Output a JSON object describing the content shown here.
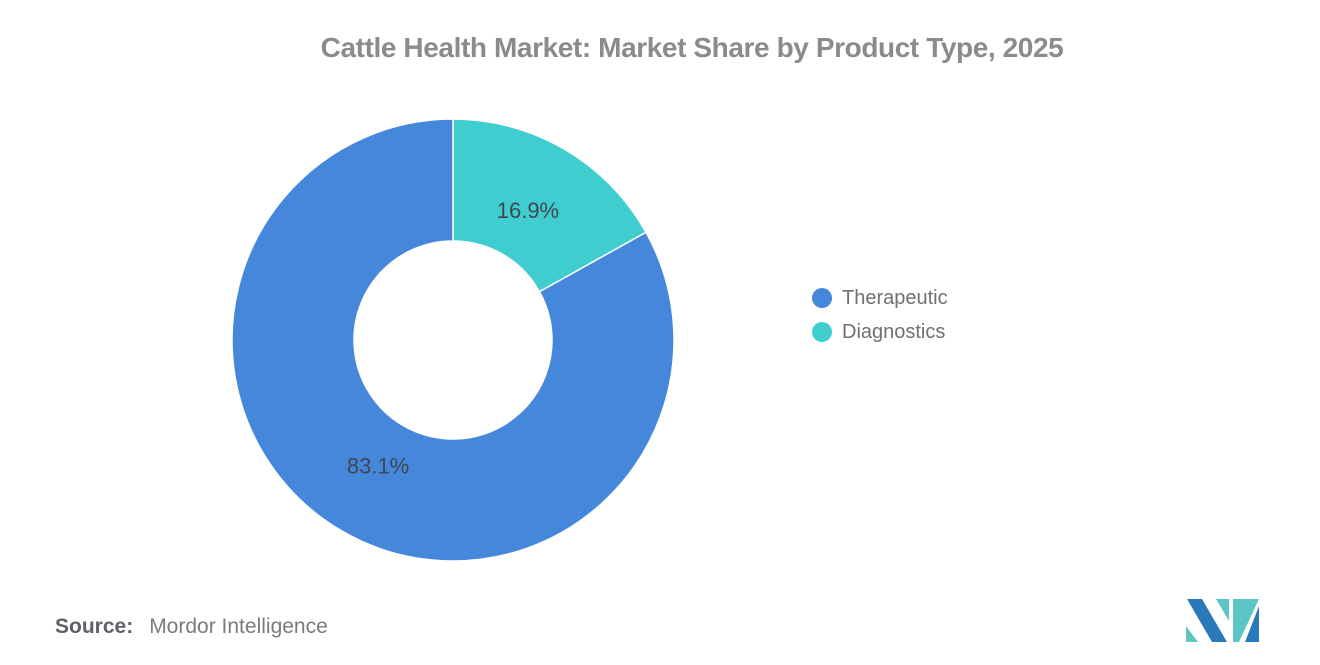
{
  "title": "Cattle Health Market: Market Share by Product Type, 2025",
  "chart_data": {
    "type": "pie",
    "subtype": "donut",
    "title": "Cattle Health Market: Market Share by Product Type, 2025",
    "start_angle_deg": 0,
    "direction": "clockwise-from-top",
    "inner_radius_ratio": 0.45,
    "slices": [
      {
        "name": "Therapeutic",
        "value": 83.1,
        "label": "83.1%",
        "color": "#4587db"
      },
      {
        "name": "Diagnostics",
        "value": 16.9,
        "label": "16.9%",
        "color": "#40cdd0"
      }
    ],
    "legend_position": "right",
    "data_label_color": "#3e4851",
    "background": "#ffffff"
  },
  "legend": {
    "items": [
      {
        "label": "Therapeutic",
        "color": "#4587db"
      },
      {
        "label": "Diagnostics",
        "color": "#40cdd0"
      }
    ]
  },
  "source": {
    "label": "Source:",
    "value": "Mordor Intelligence"
  },
  "logo": {
    "name": "mordor-intelligence-logo",
    "blue": "#2a79ba",
    "teal": "#5cc6c4"
  }
}
